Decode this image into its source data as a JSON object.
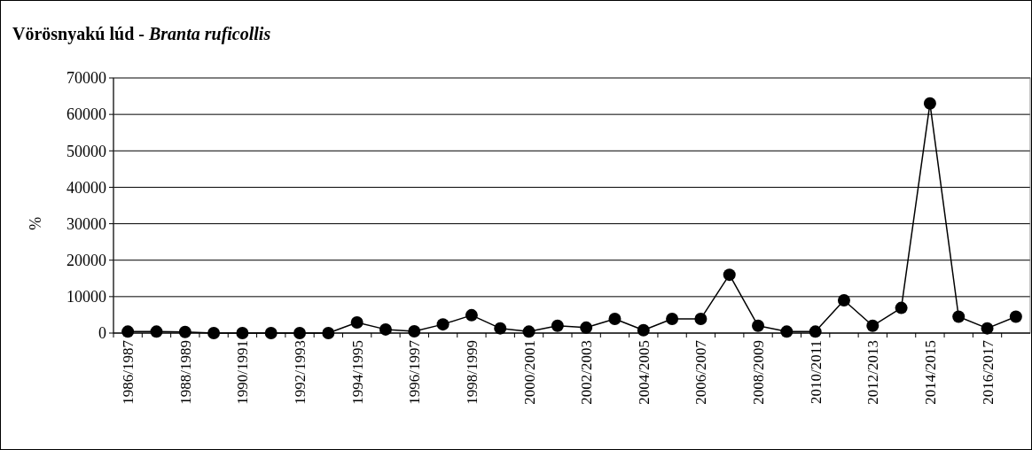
{
  "chart_data": {
    "type": "line",
    "title": "Vörösnyakú lúd - Branta ruficollis",
    "ylabel": "%",
    "categories": [
      "1986/1987",
      null,
      "1988/1989",
      null,
      "1990/1991",
      null,
      "1992/1993",
      null,
      "1994/1995",
      null,
      "1996/1997",
      null,
      "1998/1999",
      null,
      "2000/2001",
      null,
      "2002/2003",
      null,
      "2004/2005",
      null,
      "2006/2007",
      null,
      "2008/2009",
      null,
      "2010/2011",
      null,
      "2012/2013",
      null,
      "2014/2015",
      null,
      "2016/2017",
      null
    ],
    "series": [
      {
        "color": "#000000",
        "values": [
          400,
          400,
          300,
          0,
          0,
          0,
          0,
          0,
          2900,
          1000,
          500,
          2400,
          4900,
          1300,
          400,
          2000,
          1500,
          3900,
          800,
          3900,
          3900,
          16000,
          2000,
          400,
          400,
          9000,
          2000,
          6900,
          63000,
          4500,
          1300,
          4500
        ]
      }
    ],
    "ylim": [
      0,
      70000
    ],
    "yticks": [
      0,
      10000,
      20000,
      30000,
      40000,
      50000,
      60000,
      70000
    ],
    "grid": "y",
    "marker": "circle",
    "line_style": "solid"
  }
}
